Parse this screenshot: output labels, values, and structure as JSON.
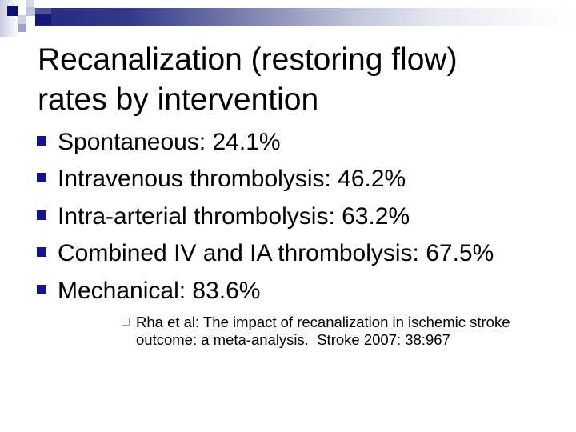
{
  "slide": {
    "title": "Recanalization (restoring flow)\nrates by intervention"
  },
  "bullets": {
    "items": [
      {
        "label": "Spontaneous: 24.1%"
      },
      {
        "label": "Intravenous thrombolysis: 46.2%"
      },
      {
        "label": "Intra-arterial thrombolysis: 63.2%"
      },
      {
        "label": "Combined IV and IA thrombolysis: 67.5%"
      },
      {
        "label": "Mechanical: 83.6%"
      }
    ]
  },
  "citation": {
    "line1": "Rha et al: The impact of recanalization in ischemic stroke",
    "line2": "outcome: a meta-analysis.  Stroke 2007: 38:967"
  },
  "colors": {
    "bullet_navy": "#14148c",
    "bar_navy_left": "#26297f",
    "header_square_navy": "#0c107c",
    "citation_bullet_border": "#9095a8",
    "text": "#000000",
    "background": "#ffffff"
  }
}
